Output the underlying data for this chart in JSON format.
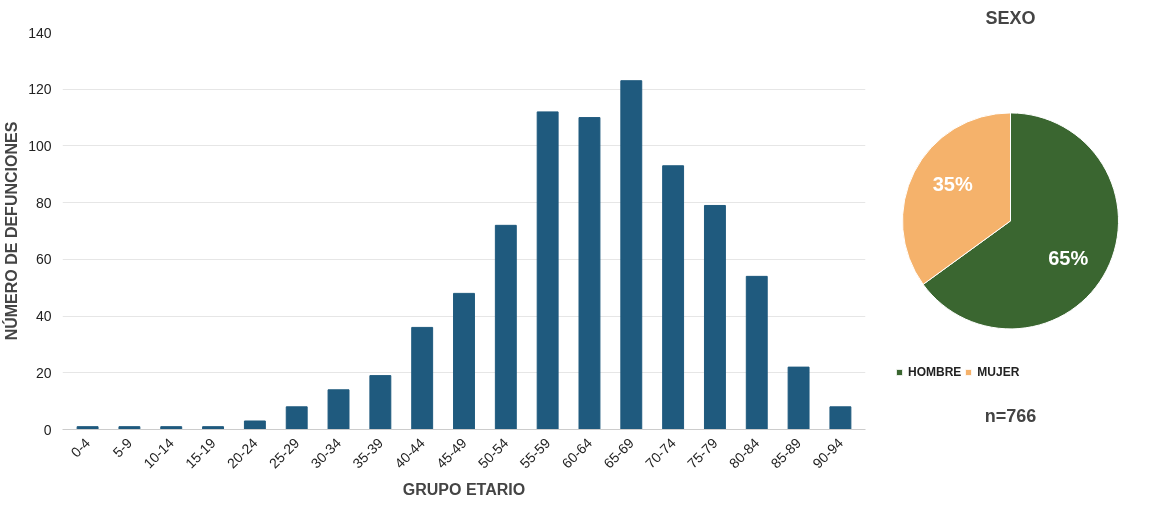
{
  "chart_data": [
    {
      "type": "bar",
      "xlabel": "GRUPO ETARIO",
      "ylabel": "NÚMERO DE DEFUNCIONES",
      "categories": [
        "0-4",
        "5-9",
        "10-14",
        "15-19",
        "20-24",
        "25-29",
        "30-34",
        "35-39",
        "40-44",
        "45-49",
        "50-54",
        "55-59",
        "60-64",
        "65-69",
        "70-74",
        "75-79",
        "80-84",
        "85-89",
        "90-94"
      ],
      "values": [
        1,
        1,
        1,
        1,
        3,
        8,
        14,
        19,
        36,
        48,
        72,
        112,
        110,
        123,
        93,
        79,
        54,
        22,
        8
      ],
      "color": "#1f5a7e",
      "ylim": [
        0,
        140
      ],
      "yticks": [
        0,
        20,
        40,
        60,
        80,
        100,
        120,
        140
      ],
      "grid": "y"
    },
    {
      "type": "pie",
      "title": "SEXO",
      "categories": [
        "HOMBRE",
        "MUJER"
      ],
      "values": [
        65,
        35
      ],
      "colors": [
        "#3a6630",
        "#f5b26b"
      ],
      "value_labels": [
        "65%",
        "35%"
      ],
      "legend": "bottom",
      "annotations": [
        "n=766"
      ]
    }
  ]
}
